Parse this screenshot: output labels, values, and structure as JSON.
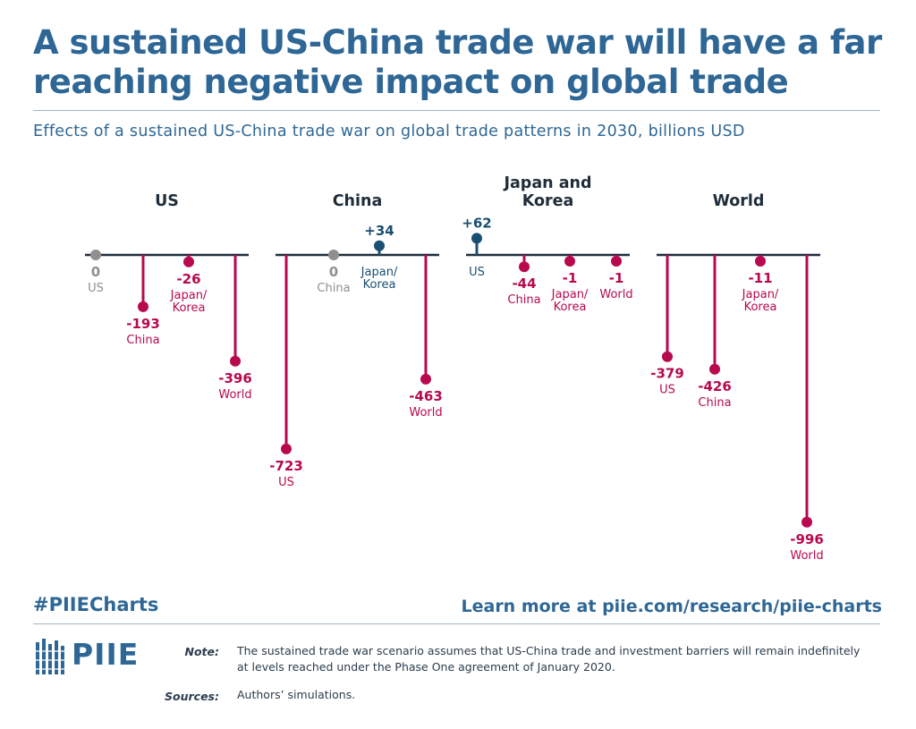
{
  "header": {
    "title": "A sustained US-China trade war will have a far reaching negative impact on global trade",
    "subtitle": "Effects of a sustained US-China trade war on global trade patterns in 2030, billions USD"
  },
  "footer": {
    "hashtag": "#PIIECharts",
    "learn_more": "Learn more at piie.com/research/piie-charts",
    "logo_text": "PIIE",
    "note_label": "Note:",
    "note_text": "The sustained trade war scenario assumes that US-China trade and investment barriers will remain indefinitely at levels reached under the Phase One agreement of January 2020.",
    "sources_label": "Sources:",
    "sources_text": "Authors’ simulations."
  },
  "colors": {
    "negative": "#b8094e",
    "positive": "#1b4f72",
    "zero": "#8f8f8f",
    "axis": "#1f2d3a",
    "brand": "#2e6795"
  },
  "chart_data": {
    "type": "lollipop",
    "units": "billions USD",
    "panels": [
      {
        "title": [
          "US"
        ],
        "points": [
          {
            "label": [
              "US"
            ],
            "value": 0,
            "display": "0"
          },
          {
            "label": [
              "China"
            ],
            "value": -193,
            "display": "-193"
          },
          {
            "label": [
              "Japan/",
              "Korea"
            ],
            "value": -26,
            "display": "-26"
          },
          {
            "label": [
              "World"
            ],
            "value": -396,
            "display": "-396"
          }
        ]
      },
      {
        "title": [
          "China"
        ],
        "points": [
          {
            "label": [
              "US"
            ],
            "value": -723,
            "display": "-723"
          },
          {
            "label": [
              "China"
            ],
            "value": 0,
            "display": "0"
          },
          {
            "label": [
              "Japan/",
              "Korea"
            ],
            "value": 34,
            "display": "+34"
          },
          {
            "label": [
              "World"
            ],
            "value": -463,
            "display": "-463"
          }
        ]
      },
      {
        "title": [
          "Japan and",
          "Korea"
        ],
        "points": [
          {
            "label": [
              "US"
            ],
            "value": 62,
            "display": "+62"
          },
          {
            "label": [
              "China"
            ],
            "value": -44,
            "display": "-44"
          },
          {
            "label": [
              "Japan/",
              "Korea"
            ],
            "value": -1,
            "display": "-1"
          },
          {
            "label": [
              "World"
            ],
            "value": -1,
            "display": "-1"
          }
        ]
      },
      {
        "title": [
          "World"
        ],
        "points": [
          {
            "label": [
              "US"
            ],
            "value": -379,
            "display": "-379"
          },
          {
            "label": [
              "China"
            ],
            "value": -426,
            "display": "-426"
          },
          {
            "label": [
              "Japan/",
              "Korea"
            ],
            "value": -11,
            "display": "-11"
          },
          {
            "label": [
              "World"
            ],
            "value": -996,
            "display": "-996"
          }
        ]
      }
    ]
  }
}
